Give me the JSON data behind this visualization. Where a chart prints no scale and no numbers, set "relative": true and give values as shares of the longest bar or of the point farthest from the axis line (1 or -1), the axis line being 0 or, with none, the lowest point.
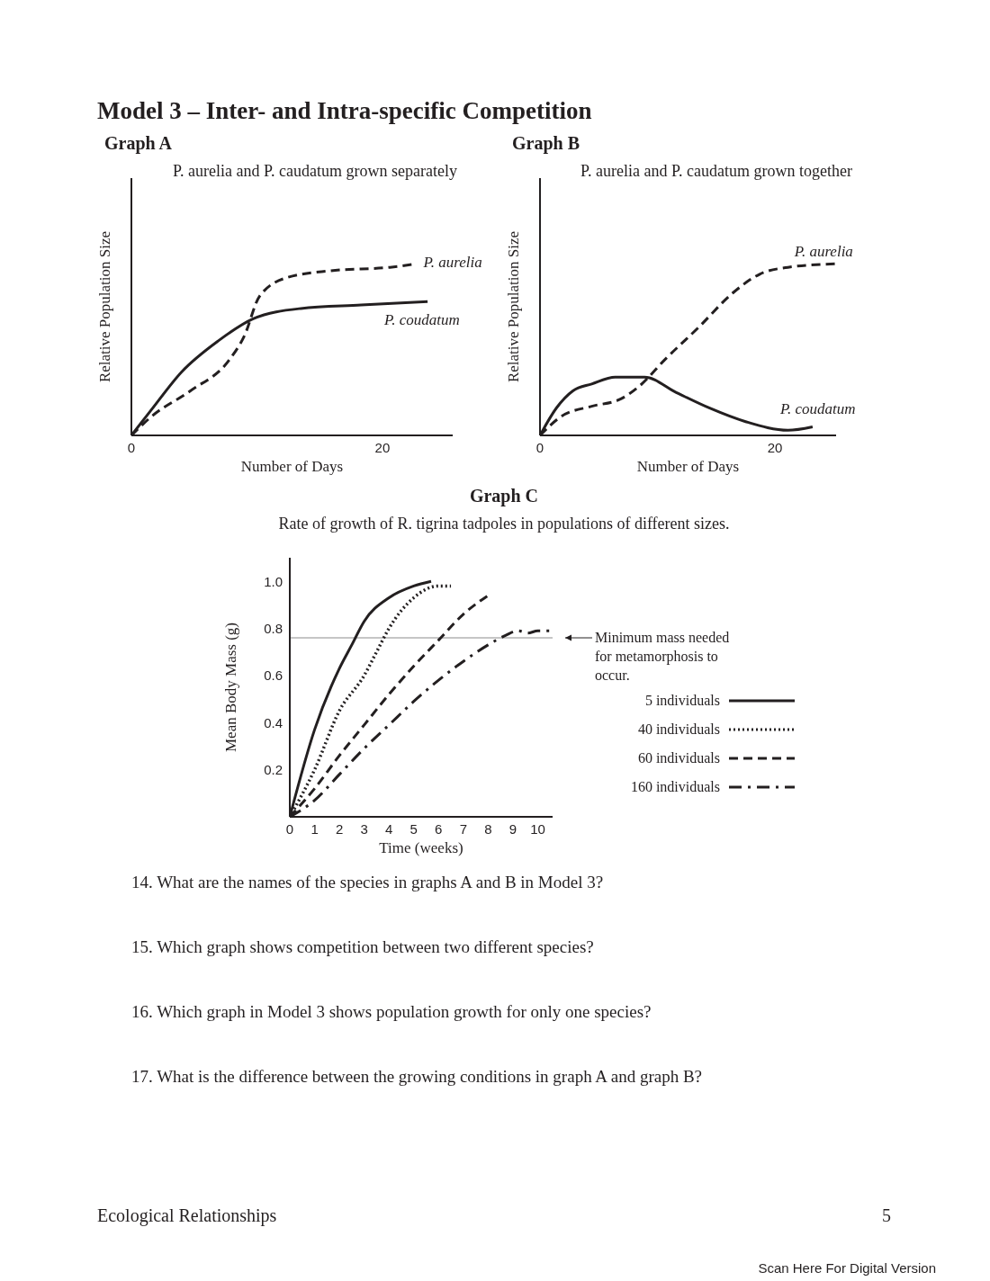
{
  "chart_data": [
    {
      "type": "line",
      "title": "Graph A",
      "subtitle": "P. aurelia and P. caudatum grown separately",
      "xlabel": "Number of Days",
      "ylabel": "Relative Population Size",
      "relative": true,
      "xlim": [
        0,
        25.6
      ],
      "xticks": [
        0,
        20
      ],
      "legend": false,
      "grid": false,
      "marker": "none",
      "annotations": [
        "Model 3 – Inter- and Intra-specific Competition"
      ],
      "series": [
        {
          "name": "P. aurelia",
          "color": "#231f20",
          "line_style": "dashed",
          "x": [
            0,
            1.6,
            4.7,
            7.8,
            9,
            10.2,
            12.4,
            15.9,
            20.6,
            22.7
          ],
          "values": [
            0,
            0.11,
            0.26,
            0.44,
            0.58,
            0.81,
            0.92,
            0.96,
            0.98,
            1
          ]
        },
        {
          "name": "P. coudatum",
          "color": "#231f20",
          "line_style": "solid",
          "x": [
            0,
            1.6,
            4,
            6.9,
            9.7,
            13.5,
            18.3,
            23.6
          ],
          "values": [
            0,
            0.15,
            0.37,
            0.55,
            0.68,
            0.74,
            0.76,
            0.78
          ]
        }
      ]
    },
    {
      "type": "line",
      "title": "Graph B",
      "subtitle": "P. aurelia and P. caudatum grown together",
      "xlabel": "Number of Days",
      "ylabel": "Relative Population Size",
      "relative": true,
      "xlim": [
        0,
        25.2
      ],
      "xticks": [
        0,
        20
      ],
      "legend": false,
      "grid": false,
      "marker": "none",
      "series": [
        {
          "name": "P. aurelia",
          "color": "#231f20",
          "line_style": "dashed",
          "x": [
            0,
            1.8,
            4.4,
            6.8,
            8.5,
            10.6,
            13.5,
            16.4,
            18.7,
            21.1,
            25.1
          ],
          "values": [
            0,
            0.11,
            0.17,
            0.21,
            0.29,
            0.44,
            0.63,
            0.83,
            0.94,
            0.98,
            1
          ]
        },
        {
          "name": "P. coudatum",
          "color": "#231f20",
          "line_style": "solid",
          "x": [
            0,
            1.4,
            2.8,
            4.4,
            6.4,
            8.9,
            11.6,
            14.4,
            17.5,
            21.1,
            23.2
          ],
          "values": [
            0,
            0.16,
            0.26,
            0.3,
            0.34,
            0.34,
            0.25,
            0.16,
            0.08,
            0.03,
            0.05
          ]
        }
      ]
    },
    {
      "type": "line",
      "title": "Graph C",
      "subtitle": "Rate of growth of R. tigrina tadpoles in populations of different sizes.",
      "xlabel": "Time (weeks)",
      "ylabel": "Mean Body Mass (g)",
      "xlim": [
        0,
        10.6
      ],
      "xticks": [
        0,
        1,
        2,
        3,
        4,
        5,
        6,
        7,
        8,
        9,
        10
      ],
      "ylim": [
        0,
        1.1
      ],
      "yticks": [
        0.2,
        0.4,
        0.6,
        0.8,
        {
          "value": 1,
          "label": "1.0"
        }
      ],
      "legend": "right",
      "grid": false,
      "marker": "none",
      "ref_lines": [
        {
          "axis": "y",
          "value": 0.76,
          "label": "Minimum mass needed for metamorphosis to occur.",
          "color": "#8c8c8c"
        }
      ],
      "annotations": [
        "14.  What are the names of the species in graphs A and B in Model 3?",
        "15.  Which graph shows competition between two different species?",
        "16.  Which graph in Model 3 shows population growth for only one species?",
        "17.  What is the difference between the growing conditions in graph A and graph B?",
        "Ecological Relationships",
        "5",
        "Scan Here For Digital Version"
      ],
      "series": [
        {
          "name": "5 individuals",
          "color": "#231f20",
          "line_style": "solid",
          "x": [
            0,
            1,
            2,
            2.5,
            3,
            4,
            5,
            5.7
          ],
          "values": [
            0,
            0.37,
            0.63,
            0.73,
            0.83,
            0.93,
            0.98,
            1
          ]
        },
        {
          "name": "40 individuals",
          "color": "#231f20",
          "line_style": "dotted",
          "x": [
            0,
            1,
            2,
            3,
            3.5,
            4,
            5,
            6,
            6.5
          ],
          "values": [
            0,
            0.2,
            0.45,
            0.6,
            0.7,
            0.8,
            0.93,
            0.98,
            0.98
          ]
        },
        {
          "name": "60 individuals",
          "color": "#231f20",
          "line_style": "dashed",
          "x": [
            0,
            1,
            2,
            3,
            4,
            5,
            6,
            7,
            8
          ],
          "values": [
            0,
            0.12,
            0.26,
            0.39,
            0.52,
            0.64,
            0.75,
            0.86,
            0.94
          ]
        },
        {
          "name": "160 individuals",
          "color": "#231f20",
          "line_style": "dashdot",
          "x": [
            0,
            1,
            2,
            3,
            4,
            5,
            6,
            7,
            8,
            8.7,
            9.2,
            9.6,
            10,
            10.5
          ],
          "values": [
            0,
            0.07,
            0.18,
            0.29,
            0.39,
            0.49,
            0.58,
            0.66,
            0.73,
            0.77,
            0.79,
            0.78,
            0.79,
            0.79
          ]
        }
      ]
    }
  ]
}
